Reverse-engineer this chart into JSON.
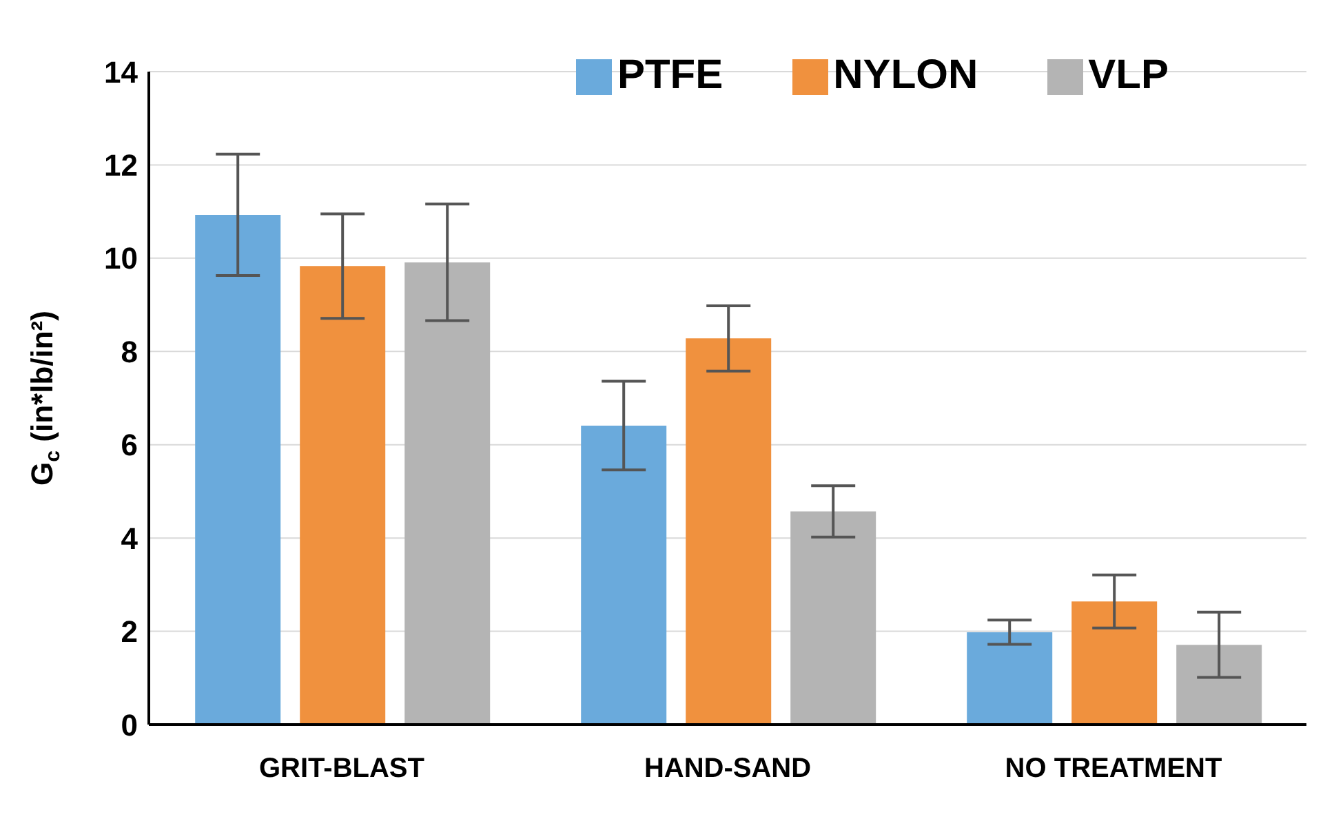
{
  "chart_data": {
    "type": "bar",
    "ylabel": "G$_{c}$ (in*lb/in²)",
    "categories": [
      "GRIT-BLAST",
      "HAND-SAND",
      "NO TREATMENT"
    ],
    "series": [
      {
        "name": "PTFE",
        "color": "#6aaadc",
        "values": [
          10.93,
          6.41,
          1.98
        ],
        "errors": [
          1.3,
          0.95,
          0.26
        ]
      },
      {
        "name": "NYLON",
        "color": "#f0913e",
        "values": [
          9.83,
          8.28,
          2.64
        ],
        "errors": [
          1.12,
          0.7,
          0.57
        ]
      },
      {
        "name": "VLP",
        "color": "#b4b4b4",
        "values": [
          9.91,
          4.57,
          1.71
        ],
        "errors": [
          1.25,
          0.55,
          0.7
        ]
      }
    ],
    "ylim": [
      0,
      14
    ],
    "yticks": [
      0,
      2,
      4,
      6,
      8,
      10,
      12,
      14
    ],
    "grid": "y",
    "legend": "top right"
  }
}
